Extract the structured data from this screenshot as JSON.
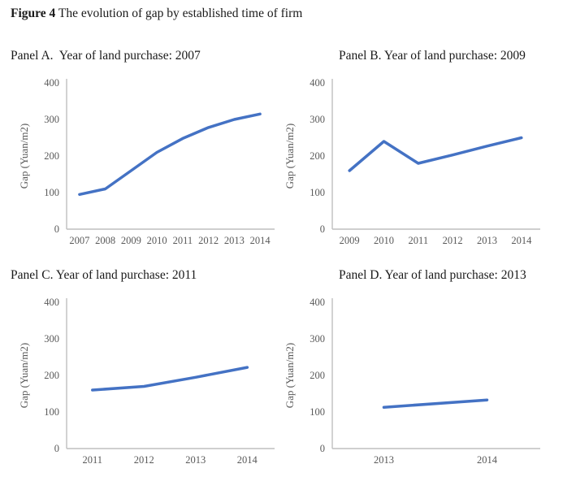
{
  "figure": {
    "label": "Figure 4",
    "title": " The evolution of gap by established time of firm"
  },
  "colors": {
    "line": "#4472C4",
    "axis": "#BFBFBF",
    "tick_text": "#595959",
    "axis_label_text": "#595959"
  },
  "chart_data": [
    {
      "type": "line",
      "title": "Panel A.  Year of land purchase: 2007",
      "categories": [
        "2007",
        "2008",
        "2009",
        "2010",
        "2011",
        "2012",
        "2013",
        "2014"
      ],
      "values": [
        95,
        110,
        160,
        210,
        248,
        278,
        300,
        315
      ],
      "xlabel": "",
      "ylabel": "Gap (Yuan/m2)",
      "ylim": [
        0,
        400
      ],
      "yticks": [
        0,
        100,
        200,
        300,
        400
      ],
      "grid": false,
      "legend": "none"
    },
    {
      "type": "line",
      "title": "Panel B. Year of land purchase: 2009",
      "categories": [
        "2009",
        "2010",
        "2011",
        "2012",
        "2013",
        "2014"
      ],
      "values": [
        160,
        240,
        180,
        203,
        227,
        250
      ],
      "xlabel": "",
      "ylabel": "Gap (Yuan/m2)",
      "ylim": [
        0,
        400
      ],
      "yticks": [
        0,
        100,
        200,
        300,
        400
      ],
      "grid": false,
      "legend": "none"
    },
    {
      "type": "line",
      "title": "Panel C. Year of land purchase: 2011",
      "categories": [
        "2011",
        "2012",
        "2013",
        "2014"
      ],
      "values": [
        160,
        170,
        195,
        222
      ],
      "xlabel": "",
      "ylabel": "Gap (Yuan/m2)",
      "ylim": [
        0,
        400
      ],
      "yticks": [
        0,
        100,
        200,
        300,
        400
      ],
      "grid": false,
      "legend": "none"
    },
    {
      "type": "line",
      "title": "Panel D. Year of land purchase: 2013",
      "categories": [
        "2013",
        "2014"
      ],
      "values": [
        113,
        133
      ],
      "xlabel": "",
      "ylabel": "Gap (Yuan/m2)",
      "ylim": [
        0,
        400
      ],
      "yticks": [
        0,
        100,
        200,
        300,
        400
      ],
      "grid": false,
      "legend": "none"
    }
  ]
}
